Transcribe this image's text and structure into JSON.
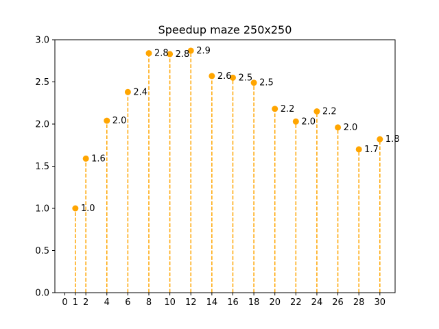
{
  "chart_data": {
    "type": "scatter",
    "style": "stem",
    "title": "Speedup maze 250x250",
    "xlabel": "",
    "ylabel": "",
    "x": [
      1,
      2,
      4,
      6,
      8,
      10,
      12,
      14,
      16,
      18,
      20,
      22,
      24,
      26,
      28,
      30
    ],
    "y": [
      1.0,
      1.59,
      2.04,
      2.38,
      2.84,
      2.83,
      2.87,
      2.57,
      2.55,
      2.49,
      2.18,
      2.03,
      2.15,
      1.96,
      1.7,
      1.82
    ],
    "labels": [
      "1.0",
      "1.6",
      "2.0",
      "2.4",
      "2.8",
      "2.8",
      "2.9",
      "2.6",
      "2.5",
      "2.5",
      "2.2",
      "2.0",
      "2.2",
      "2.0",
      "1.7",
      "1.8"
    ],
    "xticks": [
      0,
      1,
      2,
      4,
      6,
      8,
      10,
      12,
      14,
      16,
      18,
      20,
      22,
      24,
      26,
      28,
      30
    ],
    "xtick_labels": [
      "0",
      "1",
      "2",
      "4",
      "6",
      "8",
      "10",
      "12",
      "14",
      "16",
      "18",
      "20",
      "22",
      "24",
      "26",
      "28",
      "30"
    ],
    "yticks": [
      0.0,
      0.5,
      1.0,
      1.5,
      2.0,
      2.5,
      3.0
    ],
    "ytick_labels": [
      "0.0",
      "0.5",
      "1.0",
      "1.5",
      "2.0",
      "2.5",
      "3.0"
    ],
    "xlim": [
      -0.95,
      31.45
    ],
    "ylim": [
      0,
      3.0
    ],
    "grid": false,
    "legend": "none",
    "color": "#ffa500"
  }
}
